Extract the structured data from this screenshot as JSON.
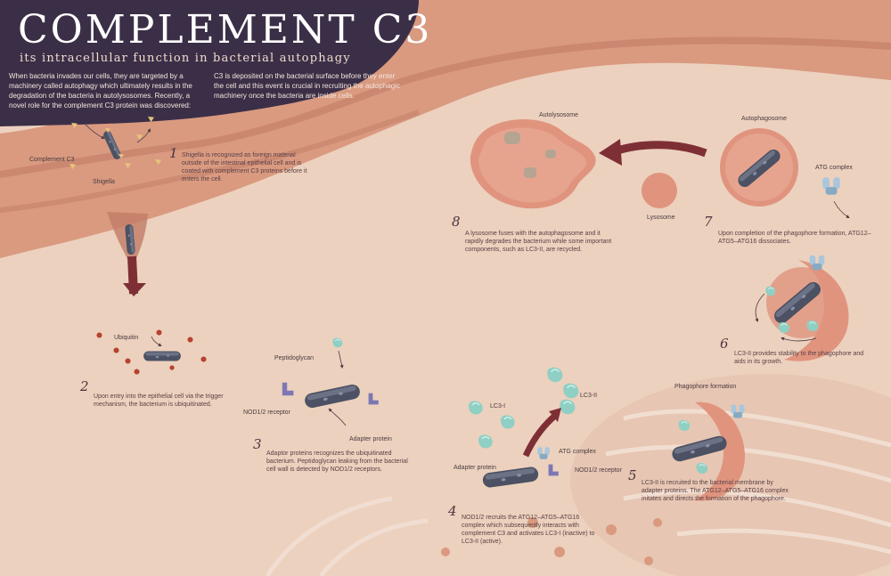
{
  "header": {
    "title": "COMPLEMENT C3",
    "subtitle": "its intracellular function in bacterial autophagy",
    "intro_left": "When bacteria invades our cells, they are targeted by a machinery called autophagy which ultimately results in the degradation of the bacteria in autolysosomes. Recently, a novel role for the complement C3 protein was discovered:",
    "intro_right": "C3 is deposited on the bacterial surface before they enter the cell and this event is crucial in recruiting the autophagic machinery once the bacteria are inside cells."
  },
  "labels": {
    "complement_c3": "Complement C3",
    "shigella": "Shigella",
    "ubiquitin": "Ubiquitin",
    "peptidoglycan": "Peptidoglycan",
    "nod_receptor_3": "NOD1/2 receptor",
    "adapter_protein_3": "Adapter protein",
    "lc3_i": "LC3-I",
    "lc3_ii": "LC3-II",
    "atg_complex_4": "ATG complex",
    "adapter_protein_4": "Adapter protein",
    "nod_receptor_4": "NOD1/2 receptor",
    "phagophore_formation": "Phagophore formation",
    "autolysosome": "Autolysosome",
    "lysosome": "Lysosome",
    "autophagosome": "Autophagosome",
    "atg_complex_7": "ATG complex"
  },
  "steps": [
    {
      "number": "1",
      "text": "Shigella is recognized as foreign material outside of the intestinal epithelial cell and is coated with complement C3 proteins before it enters the cell."
    },
    {
      "number": "2",
      "text": "Upon entry into the epithelial cell via the trigger mechanism, the bacterium is ubiquitinated."
    },
    {
      "number": "3",
      "text": "Adaptor proteins recognizes the ubiquitinated bacterium. Peptidoglycan leaking from the bacterial cell wall is detected by NOD1/2 receptors."
    },
    {
      "number": "4",
      "text": "NOD1/2 recruits the ATG12–ATG5–ATG16 complex which subsequently interacts with complement C3 and activates LC3-I (inactive) to LC3-II (active)."
    },
    {
      "number": "5",
      "text": "LC3-II is recruited to the bacterial membrane by adapter proteins. The ATG12–ATG5–ATG16 complex initates and directs the formation of the phagophore."
    },
    {
      "number": "6",
      "text": "LC3-II provides stability to the phagophore and aids in its growth."
    },
    {
      "number": "7",
      "text": "Upon completion of the phagophore formation, ATG12–ATG5–ATG16 dissociates."
    },
    {
      "number": "8",
      "text": "A lysosome fuses with the autophagosome and it rapidly degrades the bacterium while some important components, such as LC3-II, are recycled."
    }
  ],
  "colors": {
    "header_bg": "#3b2f47",
    "tissue": "#d99a80",
    "cytoplasm": "#ecd1be",
    "arrow": "#7e2f35",
    "bacterium": "#4c5163",
    "c3": "#e6c47a",
    "ubiquitin": "#b5432f",
    "lc3": "#8fcfc4",
    "atg": "#a9c6dc",
    "nod": "#7d77b3",
    "vesicle": "#e0947e"
  },
  "icons": [
    "bacterium-icon",
    "complement-c3-icon",
    "ubiquitin-icon",
    "lc3-protein-icon",
    "atg-complex-icon",
    "nod-receptor-icon",
    "lysosome-icon"
  ]
}
